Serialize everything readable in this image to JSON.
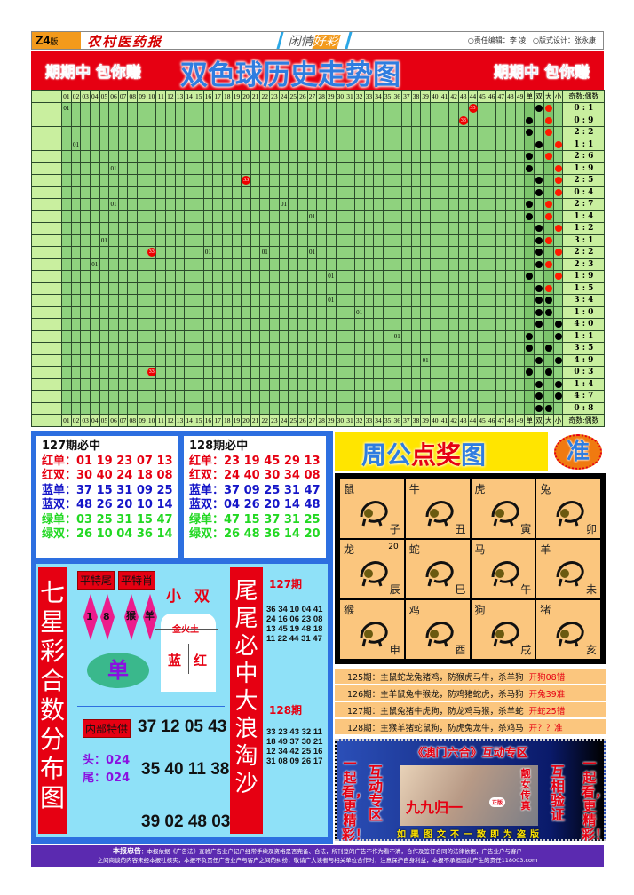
{
  "header": {
    "section": "Z4",
    "section_suffix": "版",
    "paper": "农村医药报",
    "column_a": "闲情",
    "column_b": "好彩",
    "editor": "○责任编辑：李 凌",
    "designer": "○版式设计：张永康"
  },
  "banner": {
    "slogan_left": "期期中 包你赚",
    "title": "双色球历史走势图",
    "slogan_right": "期期中 包你赚"
  },
  "trend": {
    "numbers": [
      "01",
      "02",
      "03",
      "04",
      "05",
      "06",
      "07",
      "08",
      "09",
      "10",
      "11",
      "12",
      "13",
      "14",
      "15",
      "16",
      "17",
      "18",
      "19",
      "20",
      "21",
      "22",
      "23",
      "24",
      "25",
      "26",
      "27",
      "28",
      "29",
      "30",
      "31",
      "32",
      "33",
      "34",
      "35",
      "36",
      "37",
      "38",
      "39",
      "40",
      "41",
      "42",
      "43",
      "44",
      "45",
      "46",
      "47",
      "48",
      "49"
    ],
    "stat_headers": [
      "单",
      "双",
      "大",
      "小",
      "奇数:偶数"
    ],
    "colors": {
      "grid": "#8fd27e",
      "header": "#c9ef9f",
      "marker_red": "#e00000",
      "dot_black": "#000000",
      "dot_red": "#ff1a00"
    },
    "rows": [
      {
        "marks": [
          [
            1,
            "01"
          ],
          [
            44,
            "33"
          ]
        ],
        "oe": "双",
        "bs": "大",
        "bs_color": "red",
        "ratio": "0 : 1"
      },
      {
        "marks": [
          [
            43,
            "33"
          ]
        ],
        "oe": "单",
        "bs": "大",
        "bs_color": "red",
        "ratio": "0 : 9"
      },
      {
        "marks": [],
        "oe": "单",
        "bs": "大",
        "bs_color": "red",
        "ratio": "2 : 2"
      },
      {
        "marks": [
          [
            2,
            "01"
          ]
        ],
        "oe": "双",
        "bs": "小",
        "bs_color": "red",
        "ratio": "1 : 1"
      },
      {
        "marks": [],
        "oe": "单",
        "bs": "大",
        "bs_color": "red",
        "ratio": "2 : 6"
      },
      {
        "marks": [
          [
            6,
            "01"
          ]
        ],
        "oe": "单",
        "bs": "小",
        "bs_color": "red",
        "ratio": "1 : 9"
      },
      {
        "marks": [
          [
            20,
            "33"
          ]
        ],
        "oe": "双",
        "bs": "小",
        "bs_color": "red",
        "ratio": "2 : 5"
      },
      {
        "marks": [],
        "oe": "双",
        "bs": "小",
        "bs_color": "red",
        "ratio": "0 : 4"
      },
      {
        "marks": [
          [
            6,
            "01"
          ],
          [
            24,
            "01"
          ]
        ],
        "oe": "单",
        "bs": "大",
        "bs_color": "red",
        "ratio": "2 : 7"
      },
      {
        "marks": [
          [
            27,
            "01"
          ]
        ],
        "oe": "单",
        "bs": "大",
        "bs_color": "red",
        "ratio": "1 : 4"
      },
      {
        "marks": [],
        "oe": "双",
        "bs": "小",
        "bs_color": "red",
        "ratio": "1 : 2"
      },
      {
        "marks": [
          [
            5,
            "01"
          ]
        ],
        "oe": "双",
        "bs": "大",
        "bs_color": "red",
        "ratio": "3 : 1"
      },
      {
        "marks": [
          [
            10,
            "33"
          ],
          [
            16,
            "01"
          ],
          [
            22,
            "01"
          ],
          [
            27,
            "01"
          ]
        ],
        "oe": "双",
        "bs": "小",
        "bs_color": "red",
        "ratio": "2 : 2"
      },
      {
        "marks": [
          [
            4,
            "01"
          ]
        ],
        "oe": "双",
        "bs": "大",
        "bs_color": "red",
        "ratio": "2 : 3"
      },
      {
        "marks": [
          [
            29,
            "01"
          ]
        ],
        "oe": "单",
        "bs": "小",
        "bs_color": "red",
        "ratio": "1 : 9"
      },
      {
        "marks": [],
        "oe": "双",
        "bs": "大",
        "bs_color": "red",
        "ratio": "1 : 5"
      },
      {
        "marks": [
          [
            29,
            "01"
          ]
        ],
        "oe": "双",
        "bs": "大",
        "bs_color": "black",
        "ratio": "3 : 4"
      },
      {
        "marks": [
          [
            32,
            "01"
          ]
        ],
        "oe": "双",
        "bs": "大",
        "bs_color": "black",
        "ratio": "1 : 0"
      },
      {
        "marks": [],
        "oe": "双",
        "bs": "小",
        "bs_color": "black",
        "ratio": "4 : 0"
      },
      {
        "marks": [
          [
            36,
            "01"
          ]
        ],
        "oe": "单",
        "bs": "小",
        "bs_color": "black",
        "ratio": "1 : 1"
      },
      {
        "marks": [],
        "oe": "单",
        "bs": "大",
        "bs_color": "black",
        "ratio": "3 : 5"
      },
      {
        "marks": [
          [
            39,
            "01"
          ]
        ],
        "oe": "双",
        "bs": "小",
        "bs_color": "black",
        "ratio": "4 : 9"
      },
      {
        "marks": [
          [
            10,
            "33"
          ]
        ],
        "oe": "单",
        "bs": "大",
        "bs_color": "black",
        "ratio": "0 : 3"
      },
      {
        "marks": [],
        "oe": "双",
        "bs": "小",
        "bs_color": "black",
        "ratio": "1 : 4"
      },
      {
        "marks": [],
        "oe": "双",
        "bs": "小",
        "bs_color": "black",
        "ratio": "4 : 7"
      },
      {
        "marks": [],
        "oe": "双",
        "bs": "大",
        "bs_color": "black",
        "ratio": "0 : 8"
      }
    ]
  },
  "picks": [
    {
      "title": "127期必中",
      "lines": [
        {
          "label": "红单：",
          "nums": "01 19 23 07 13"
        },
        {
          "label": "红双：",
          "nums": "30 40 24 18 08"
        },
        {
          "label": "蓝单：",
          "nums": "37 15 31 09 25"
        },
        {
          "label": "蓝双：",
          "nums": "48 26 20 10 14"
        },
        {
          "label": "绿单：",
          "nums": "03 25 31 15 47"
        },
        {
          "label": "绿双：",
          "nums": "26 10 04 36 14"
        }
      ]
    },
    {
      "title": "128期必中",
      "lines": [
        {
          "label": "红单：",
          "nums": "23 19 45 29 13"
        },
        {
          "label": "红双：",
          "nums": "24 40 30 34 08"
        },
        {
          "label": "蓝单：",
          "nums": "37 09 25 31 47"
        },
        {
          "label": "蓝双：",
          "nums": "04 26 20 14 48"
        },
        {
          "label": "绿单：",
          "nums": "47 15 37 31 25"
        },
        {
          "label": "绿双：",
          "nums": "26 48 36 14 20"
        }
      ]
    }
  ],
  "seven": {
    "left_title": "七星彩合数分布图",
    "right_title": "尾尾必中大浪淘沙",
    "tag_tail": "平特尾",
    "tag_zodiac": "平特肖",
    "tails": [
      "1",
      "8"
    ],
    "zodiacs": [
      "猴",
      "羊"
    ],
    "odd": "单",
    "small": "小",
    "double": "双",
    "elements": "金火土",
    "blue": "蓝",
    "red": "红",
    "inside_tag": "内部特供",
    "inside_nums": [
      "37 12 05 43",
      "35 40 11 38",
      "39 02 48 03"
    ],
    "head_label": "头：",
    "head_val": "024",
    "tail_label": "尾：",
    "tail_val": "024",
    "p127": "127期",
    "list127": [
      "36 34 10 04 41",
      "24 16 06 23 08",
      "13 45 19 48 18",
      "11 22 44 31 47"
    ],
    "p128": "128期",
    "list128": [
      "33 23 43 32 11",
      "18 49 37 30 21",
      "12 34 42 25 16",
      "31 08 09 26 17"
    ]
  },
  "zhougong": {
    "title_a": "周公",
    "title_b": "点奖",
    "title_c": "图",
    "badge": "准",
    "zodiac": [
      {
        "name": "鼠",
        "branch": "子"
      },
      {
        "name": "牛",
        "branch": "丑"
      },
      {
        "name": "虎",
        "branch": "寅"
      },
      {
        "name": "兔",
        "branch": "卯"
      },
      {
        "name": "龙",
        "branch": "辰",
        "extra": "20"
      },
      {
        "name": "蛇",
        "branch": "巳"
      },
      {
        "name": "马",
        "branch": "午"
      },
      {
        "name": "羊",
        "branch": "未"
      },
      {
        "name": "猴",
        "branch": "申"
      },
      {
        "name": "鸡",
        "branch": "酉"
      },
      {
        "name": "狗",
        "branch": "戌"
      },
      {
        "name": "猪",
        "branch": "亥"
      }
    ],
    "predictions": [
      {
        "text": "125期：主鼠蛇龙兔猪鸡，防猴虎马牛，杀羊狗",
        "result": "开狗08错"
      },
      {
        "text": "126期：主羊鼠兔牛猴龙，防鸡猪蛇虎，杀马狗",
        "result": "开兔39准"
      },
      {
        "text": "127期：主鼠兔猪牛虎狗，防龙鸡马猴，杀羊蛇",
        "result": "开蛇25错"
      },
      {
        "text": "128期：主猴羊猪蛇鼠狗，防虎兔龙牛，杀鸡马",
        "result": "开？？准"
      }
    ]
  },
  "ad": {
    "title": "《澳门六合》互动专区",
    "left_a": "一起看，更精彩！",
    "left_b": "互动专区",
    "right_a": "互相验证",
    "right_b": "一起看，更精彩！",
    "photo_caption": "靓女传真",
    "photo_brand": "九九归一",
    "photo_badge": "正版",
    "bottom": "如果图文不一致即为盗版"
  },
  "footer": {
    "lead": "本报忠告",
    "line1": "：本报依据《广告法》查验广告业户记户经常手续及资格是否完备、合法，所刊登的广告不作为看不清，合作及签订合同的法律依据，广告业户与客户",
    "line2": "之间商谈的内容未经本报社核实，本报不负责任广告业户与客户之间的纠纷，敬请广大读者与相关单位合作时，注意保护自身利益，本报不承担因此产生的责任118003.com"
  }
}
